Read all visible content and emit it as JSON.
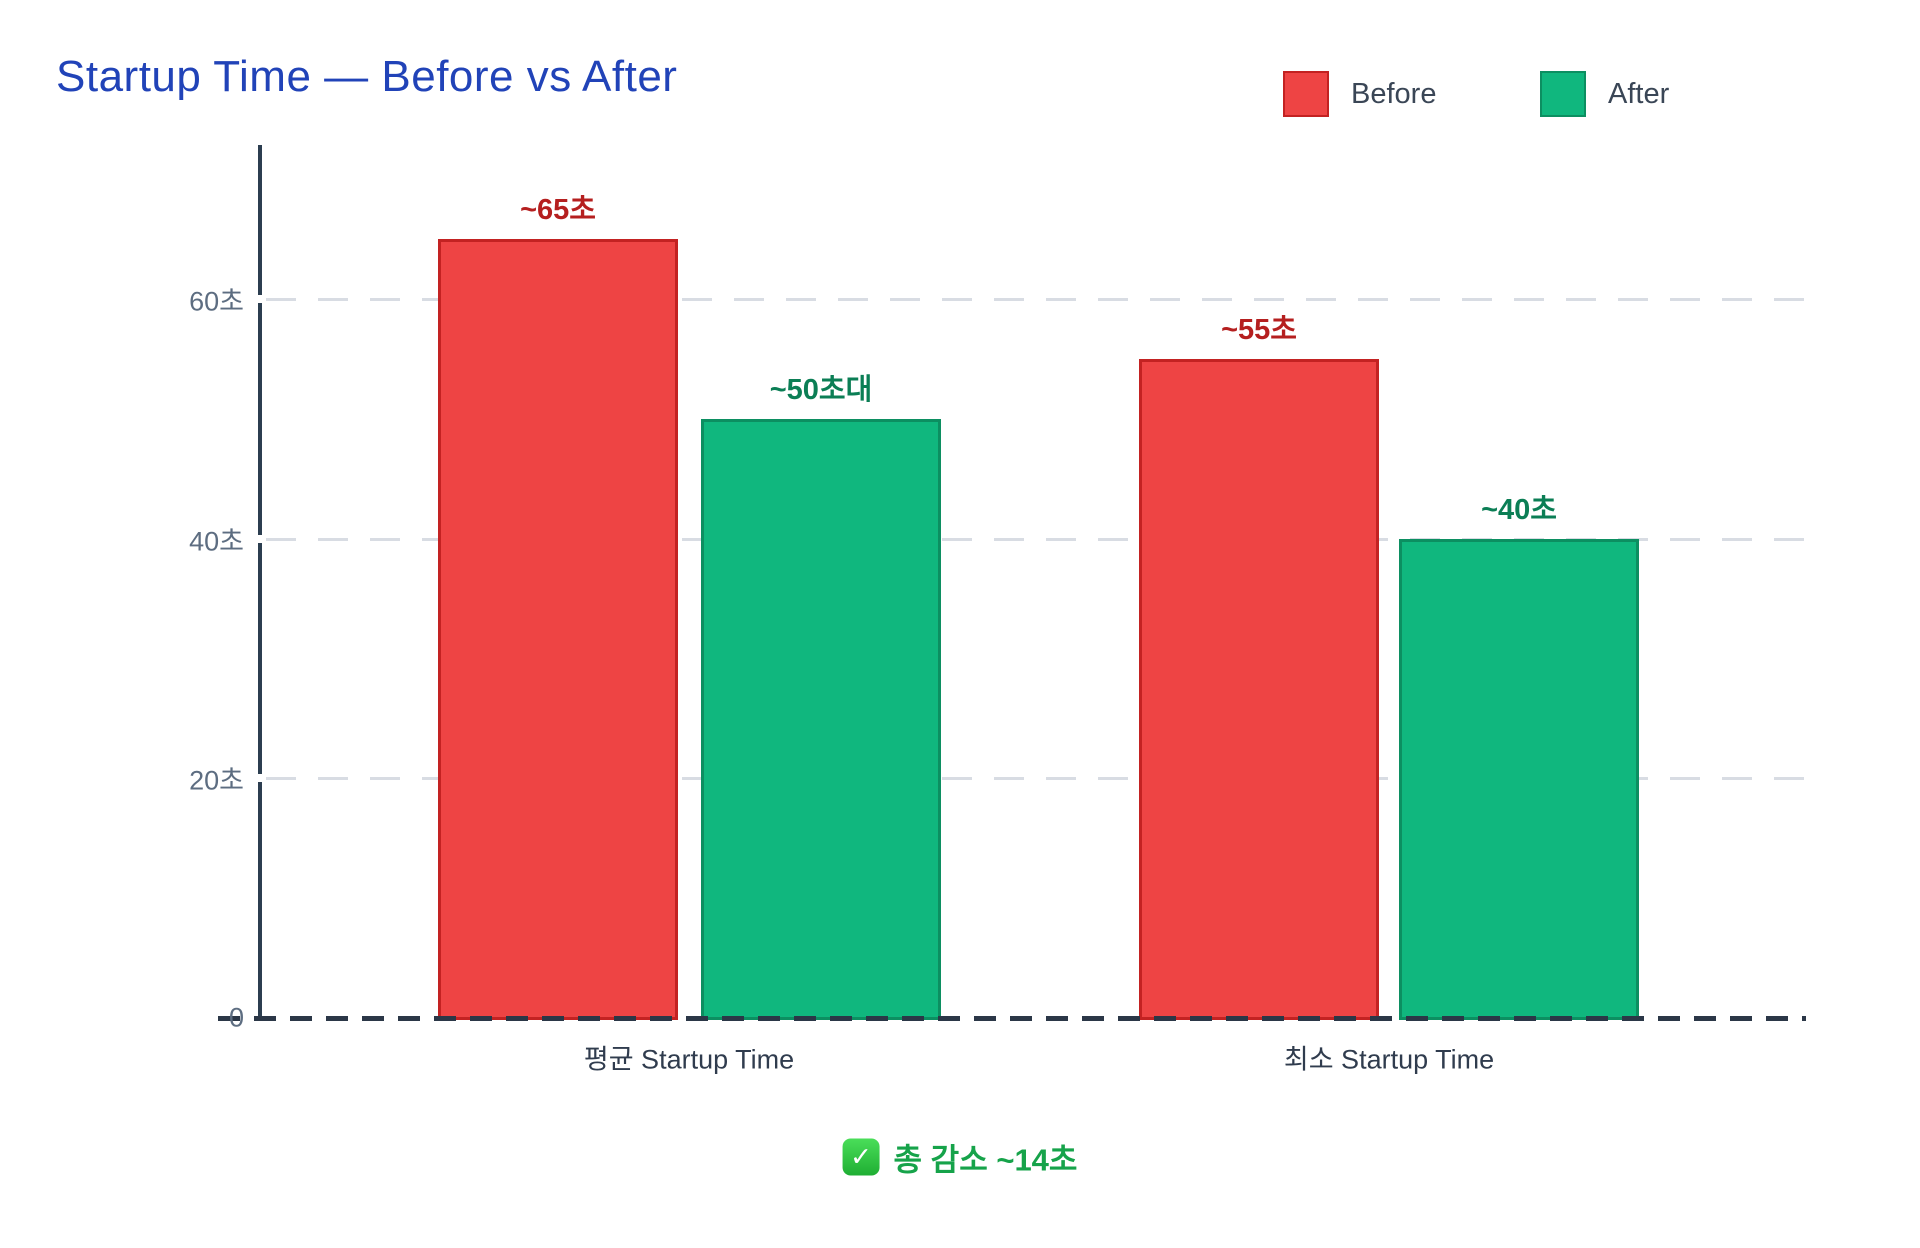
{
  "title": "Startup Time — Before vs After",
  "title_color": "#2143b8",
  "legend": {
    "position": "top-right",
    "items": [
      {
        "label": "Before",
        "fill": "#ee4444",
        "border": "#c32222"
      },
      {
        "label": "After",
        "fill": "#10b77e",
        "border": "#0c8f61"
      }
    ]
  },
  "chart_data": {
    "type": "bar",
    "categories": [
      "평균 Startup Time",
      "최소 Startup Time"
    ],
    "series": [
      {
        "name": "Before",
        "values": [
          65,
          55
        ],
        "value_labels": [
          "~65초",
          "~55초"
        ],
        "fill": "#ee4444",
        "border": "#c32222",
        "label_color": "#b51f1f"
      },
      {
        "name": "After",
        "values": [
          50,
          40
        ],
        "value_labels": [
          "~50초대",
          "~40초"
        ],
        "fill": "#10b77e",
        "border": "#0c8f61",
        "label_color": "#0b7e55"
      }
    ],
    "yticks": [
      {
        "value": 0,
        "label": "0"
      },
      {
        "value": 20,
        "label": "20초"
      },
      {
        "value": 40,
        "label": "40초"
      },
      {
        "value": 60,
        "label": "60초"
      }
    ],
    "ylim": [
      0,
      72.8
    ],
    "grid": "dashed-horizontal",
    "zeroline": "dashed-dark",
    "legend_position": "top-right"
  },
  "annotation": {
    "icon": "white-check-green-square-emoji",
    "icon_char": "✓",
    "text": "총 감소 ~14초",
    "color": "#16a34a"
  }
}
